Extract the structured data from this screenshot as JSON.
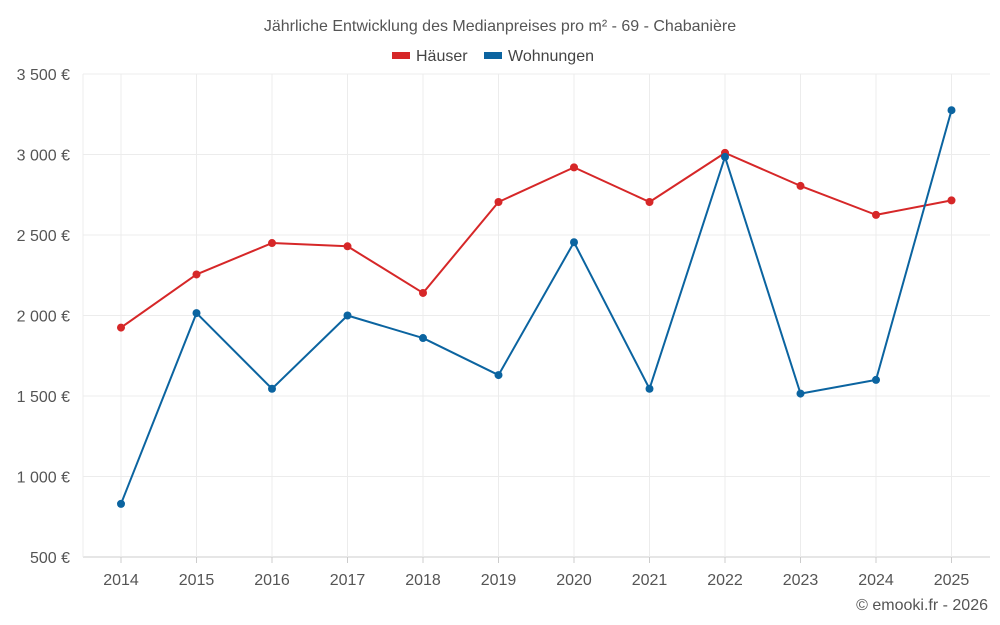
{
  "chart_data": {
    "type": "line",
    "title": "Jährliche Entwicklung des Medianpreises pro m² - 69 - Chabanière",
    "categories": [
      "2014",
      "2015",
      "2016",
      "2017",
      "2018",
      "2019",
      "2020",
      "2021",
      "2022",
      "2023",
      "2024",
      "2025"
    ],
    "series": [
      {
        "name": "Häuser",
        "color": "#d62728",
        "values": [
          1925,
          2255,
          2450,
          2430,
          2140,
          2705,
          2920,
          2705,
          3010,
          2805,
          2625,
          2715
        ]
      },
      {
        "name": "Wohnungen",
        "color": "#0b64a0",
        "values": [
          830,
          2015,
          1545,
          2000,
          1860,
          1630,
          2455,
          1545,
          2985,
          1515,
          1600,
          3275
        ]
      }
    ],
    "y_ticks": [
      500,
      1000,
      1500,
      2000,
      2500,
      3000,
      3500
    ],
    "y_tick_labels": [
      "500 €",
      "1 000 €",
      "1 500 €",
      "2 000 €",
      "2 500 €",
      "3 000 €",
      "3 500 €"
    ],
    "ylim": [
      500,
      3500
    ],
    "grid": true,
    "legend_position": "top-center",
    "xlabel": "",
    "ylabel": ""
  },
  "credit": "© emooki.fr - 2026"
}
